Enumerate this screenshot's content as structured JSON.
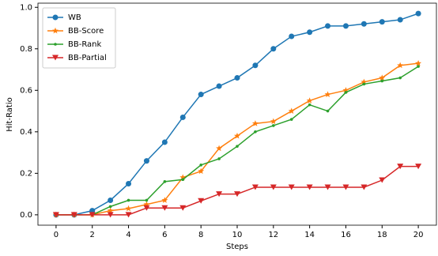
{
  "chart_data": {
    "type": "line",
    "xlabel": "Steps",
    "ylabel": "Hit-Ratio",
    "x": [
      0,
      1,
      2,
      3,
      4,
      5,
      6,
      7,
      8,
      9,
      10,
      11,
      12,
      13,
      14,
      15,
      16,
      17,
      18,
      19,
      20
    ],
    "series": [
      {
        "name": "WB",
        "color": "#1f77b4",
        "marker": "circle",
        "values": [
          0,
          0,
          0.02,
          0.07,
          0.15,
          0.26,
          0.35,
          0.47,
          0.58,
          0.62,
          0.66,
          0.72,
          0.8,
          0.86,
          0.88,
          0.91,
          0.91,
          0.92,
          0.93,
          0.94,
          0.97
        ]
      },
      {
        "name": "BB-Score",
        "color": "#ff7f0e",
        "marker": "star",
        "values": [
          0,
          0,
          0,
          0.02,
          0.03,
          0.05,
          0.07,
          0.18,
          0.21,
          0.32,
          0.38,
          0.44,
          0.45,
          0.5,
          0.55,
          0.58,
          0.6,
          0.64,
          0.66,
          0.72,
          0.73
        ]
      },
      {
        "name": "BB-Rank",
        "color": "#2ca02c",
        "marker": "dot",
        "values": [
          0,
          0,
          0,
          0.04,
          0.07,
          0.07,
          0.16,
          0.17,
          0.24,
          0.27,
          0.33,
          0.4,
          0.43,
          0.46,
          0.53,
          0.5,
          0.59,
          0.63,
          0.645,
          0.66,
          0.715
        ]
      },
      {
        "name": "BB-Partial",
        "color": "#d62728",
        "marker": "triangle_down",
        "values": [
          0,
          0,
          0,
          0,
          0,
          0.033,
          0.033,
          0.033,
          0.067,
          0.1,
          0.1,
          0.133,
          0.133,
          0.133,
          0.133,
          0.133,
          0.133,
          0.133,
          0.167,
          0.233,
          0.233
        ]
      }
    ],
    "xlim": [
      -1,
      21
    ],
    "xticks": [
      0,
      2,
      4,
      6,
      8,
      10,
      12,
      14,
      16,
      18,
      20
    ],
    "ylim": [
      -0.05,
      1.02
    ],
    "yticks": [
      {
        "value": 0,
        "label": "0.0"
      },
      {
        "value": 0.2,
        "label": "0.2"
      },
      {
        "value": 0.4,
        "label": "0.4"
      },
      {
        "value": 0.6,
        "label": "0.6"
      },
      {
        "value": 0.8,
        "label": "0.8"
      },
      {
        "value": 1,
        "label": "1.0"
      }
    ],
    "legend": "upper left"
  }
}
